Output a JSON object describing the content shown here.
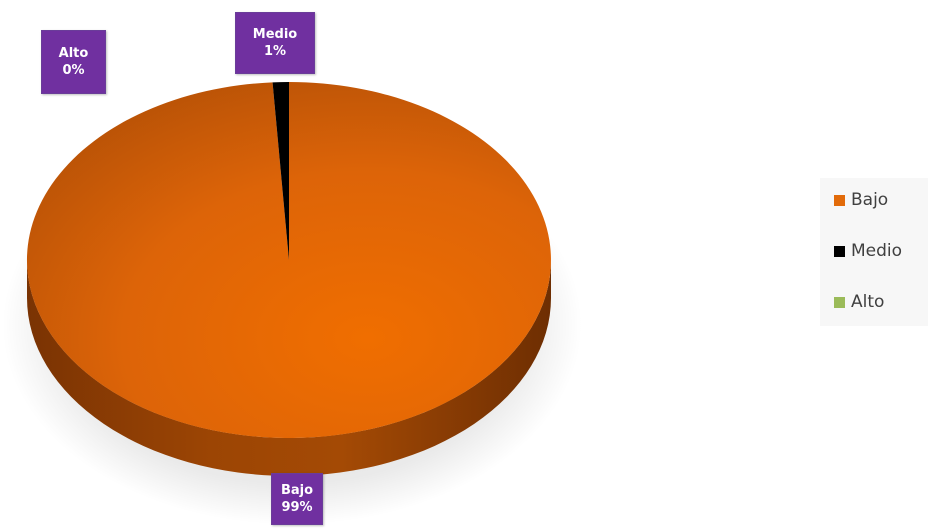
{
  "chart_data": {
    "type": "pie",
    "categories": [
      "Bajo",
      "Medio",
      "Alto"
    ],
    "values": [
      99,
      1,
      0
    ],
    "value_labels": [
      "99%",
      "1%",
      "0%"
    ],
    "colors": [
      "#e26b0a",
      "#000000",
      "#9bbb59"
    ],
    "label_background": "#7030a0",
    "legend": {
      "position": "right",
      "entries": [
        "Bajo",
        "Medio",
        "Alto"
      ]
    }
  }
}
